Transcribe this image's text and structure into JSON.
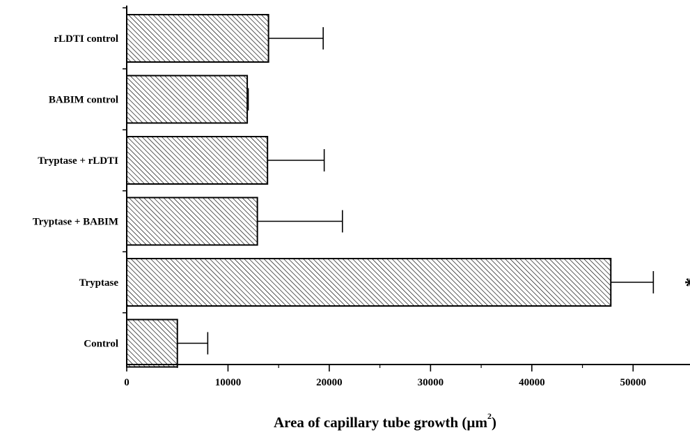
{
  "chart_data": {
    "type": "bar",
    "orientation": "horizontal",
    "categories": [
      "rLDTI control",
      "BABIM control",
      "Tryptase + rLDTI",
      "Tryptase + BABIM",
      "Tryptase",
      "Control"
    ],
    "values": [
      14000,
      11900,
      13900,
      12900,
      47800,
      5000
    ],
    "error_plus": [
      5400,
      100,
      5600,
      8400,
      4200,
      3000
    ],
    "xlim": [
      0,
      55000
    ],
    "xticks": [
      0,
      10000,
      20000,
      30000,
      40000,
      50000
    ],
    "xtick_labels": [
      "0",
      "10000",
      "20000",
      "30000",
      "40000",
      "50000"
    ],
    "xlabel": "Area of capillary tube growth (µm",
    "xlabel_sup": "2",
    "xlabel_close": ")",
    "ylabel": "",
    "annotation": {
      "text": "*",
      "category": "Tryptase"
    },
    "bar_fill": "diagonal-hatch",
    "bar_color": "#000000",
    "grid": false
  }
}
